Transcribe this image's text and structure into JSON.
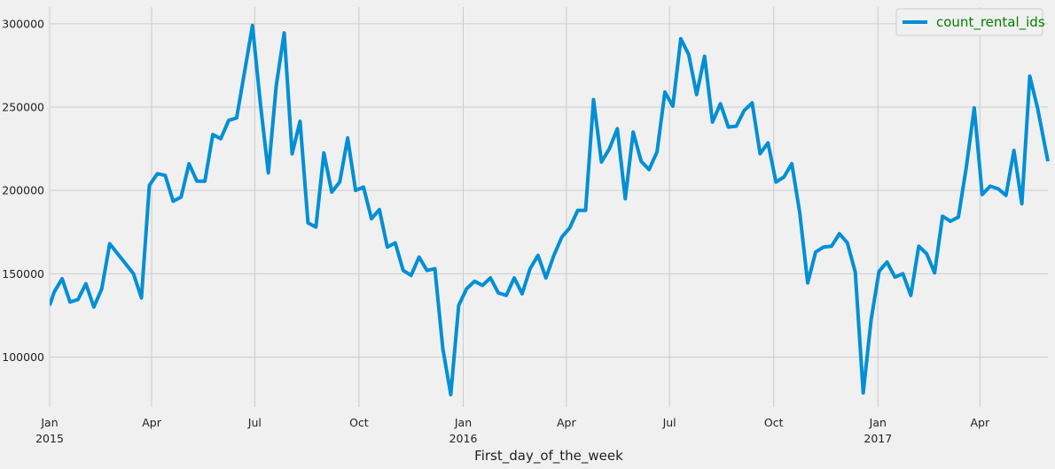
{
  "chart_data": {
    "type": "line",
    "xlabel": "First_day_of_the_week",
    "ylabel": "",
    "ylim": [
      70000,
      310000
    ],
    "yticks": [
      100000,
      150000,
      200000,
      250000,
      300000
    ],
    "ytick_labels": [
      "100000",
      "150000",
      "200000",
      "250000",
      "300000"
    ],
    "xlim": [
      "2015-01-01",
      "2017-05-31"
    ],
    "xticks": [
      {
        "date": "2015-01-01",
        "label": "Jan",
        "sublabel": "2015"
      },
      {
        "date": "2015-04-01",
        "label": "Apr",
        "sublabel": ""
      },
      {
        "date": "2015-07-01",
        "label": "Jul",
        "sublabel": ""
      },
      {
        "date": "2015-10-01",
        "label": "Oct",
        "sublabel": ""
      },
      {
        "date": "2016-01-01",
        "label": "Jan",
        "sublabel": "2016"
      },
      {
        "date": "2016-04-01",
        "label": "Apr",
        "sublabel": ""
      },
      {
        "date": "2016-07-01",
        "label": "Jul",
        "sublabel": ""
      },
      {
        "date": "2016-10-01",
        "label": "Oct",
        "sublabel": ""
      },
      {
        "date": "2017-01-01",
        "label": "Jan",
        "sublabel": "2017"
      },
      {
        "date": "2017-04-01",
        "label": "Apr",
        "sublabel": ""
      }
    ],
    "grid": true,
    "legend_position": "top-right",
    "legend_text_color": "#008000",
    "series": [
      {
        "name": "count_rental_ids",
        "color": "#008fd5",
        "x": [
          "2015-01-01",
          "2015-01-05",
          "2015-01-12",
          "2015-01-19",
          "2015-01-26",
          "2015-02-02",
          "2015-02-09",
          "2015-02-16",
          "2015-02-23",
          "2015-03-02",
          "2015-03-09",
          "2015-03-16",
          "2015-03-23",
          "2015-03-30",
          "2015-04-06",
          "2015-04-13",
          "2015-04-20",
          "2015-04-27",
          "2015-05-04",
          "2015-05-11",
          "2015-05-18",
          "2015-05-25",
          "2015-06-01",
          "2015-06-08",
          "2015-06-15",
          "2015-06-22",
          "2015-06-29",
          "2015-07-06",
          "2015-07-13",
          "2015-07-20",
          "2015-07-27",
          "2015-08-03",
          "2015-08-10",
          "2015-08-17",
          "2015-08-24",
          "2015-08-31",
          "2015-09-07",
          "2015-09-14",
          "2015-09-21",
          "2015-09-28",
          "2015-10-05",
          "2015-10-12",
          "2015-10-19",
          "2015-10-26",
          "2015-11-02",
          "2015-11-09",
          "2015-11-16",
          "2015-11-23",
          "2015-11-30",
          "2015-12-07",
          "2015-12-14",
          "2015-12-21",
          "2015-12-28",
          "2016-01-04",
          "2016-01-11",
          "2016-01-18",
          "2016-01-25",
          "2016-02-01",
          "2016-02-08",
          "2016-02-15",
          "2016-02-22",
          "2016-02-29",
          "2016-03-07",
          "2016-03-14",
          "2016-03-21",
          "2016-03-28",
          "2016-04-04",
          "2016-04-11",
          "2016-04-18",
          "2016-04-25",
          "2016-05-02",
          "2016-05-09",
          "2016-05-16",
          "2016-05-23",
          "2016-05-30",
          "2016-06-06",
          "2016-06-13",
          "2016-06-20",
          "2016-06-27",
          "2016-07-04",
          "2016-07-11",
          "2016-07-18",
          "2016-07-25",
          "2016-08-01",
          "2016-08-08",
          "2016-08-15",
          "2016-08-22",
          "2016-08-29",
          "2016-09-05",
          "2016-09-12",
          "2016-09-19",
          "2016-09-26",
          "2016-10-03",
          "2016-10-10",
          "2016-10-17",
          "2016-10-24",
          "2016-10-31",
          "2016-11-07",
          "2016-11-14",
          "2016-11-21",
          "2016-11-28",
          "2016-12-05",
          "2016-12-12",
          "2016-12-19",
          "2016-12-26",
          "2017-01-02",
          "2017-01-09",
          "2017-01-16",
          "2017-01-23",
          "2017-01-30",
          "2017-02-06",
          "2017-02-13",
          "2017-02-20",
          "2017-02-27",
          "2017-03-06",
          "2017-03-13",
          "2017-03-20",
          "2017-03-27",
          "2017-04-03",
          "2017-04-10",
          "2017-04-17",
          "2017-04-24",
          "2017-05-01",
          "2017-05-08",
          "2017-05-15",
          "2017-05-22",
          "2017-05-31"
        ],
        "values": [
          131000,
          139000,
          147000,
          133000,
          134500,
          144000,
          130000,
          141000,
          168000,
          162000,
          156000,
          150000,
          135500,
          203000,
          210000,
          209000,
          193500,
          196000,
          216000,
          205500,
          205500,
          233500,
          231000,
          242000,
          243500,
          271000,
          299000,
          252000,
          210500,
          263000,
          294500,
          222000,
          241500,
          180500,
          178000,
          222500,
          199000,
          205000,
          231500,
          200000,
          202000,
          183000,
          188500,
          166000,
          168500,
          152000,
          149000,
          160000,
          152000,
          153000,
          105000,
          77500,
          131000,
          141000,
          145500,
          143000,
          147500,
          138500,
          137000,
          147500,
          138000,
          153000,
          161000,
          147500,
          161000,
          172000,
          177500,
          188000,
          188000,
          254500,
          217000,
          225000,
          237000,
          195000,
          235000,
          217500,
          212500,
          223000,
          259000,
          250500,
          291000,
          281500,
          257500,
          280500,
          241000,
          252000,
          238000,
          238500,
          248000,
          252500,
          222000,
          228500,
          205000,
          208000,
          216000,
          186500,
          144500,
          163000,
          166000,
          166500,
          174000,
          168500,
          151000,
          78500,
          122500,
          151500,
          157000,
          148000,
          150000,
          137000,
          166500,
          162000,
          150500,
          184500,
          181500,
          184000,
          214000,
          249500,
          197500,
          202500,
          201000,
          197000,
          224000,
          192000,
          268500,
          249000,
          217500
        ]
      }
    ]
  }
}
